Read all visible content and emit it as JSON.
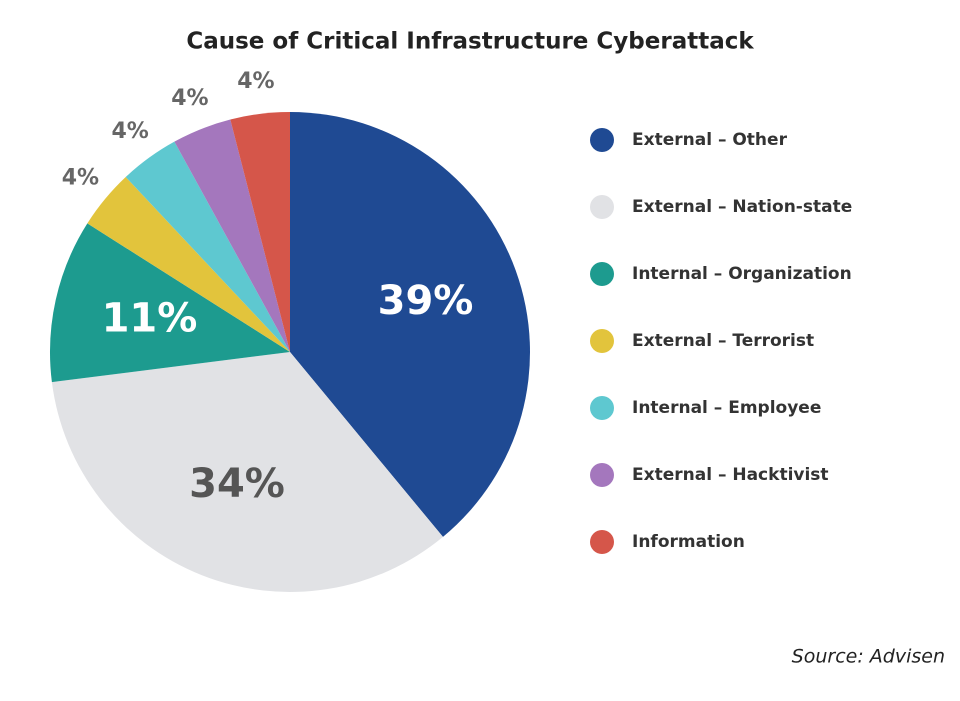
{
  "chart_data": {
    "type": "pie",
    "title": "Cause of Critical Infrastructure Cyberattack",
    "categories": [
      "External – Other",
      "External – Nation-state",
      "Internal – Organization",
      "External – Terrorist",
      "Internal – Employee",
      "External – Hacktivist",
      "Information"
    ],
    "values": [
      39,
      34,
      11,
      4,
      4,
      4,
      4
    ],
    "value_labels": [
      "39%",
      "34%",
      "11%",
      "4%",
      "4%",
      "4%",
      "4%"
    ],
    "colors": [
      "#1f4a93",
      "#e1e2e5",
      "#1d9b8f",
      "#e2c43c",
      "#5ec8d0",
      "#a477bd",
      "#d5564a"
    ],
    "source": "Source: Advisen"
  }
}
